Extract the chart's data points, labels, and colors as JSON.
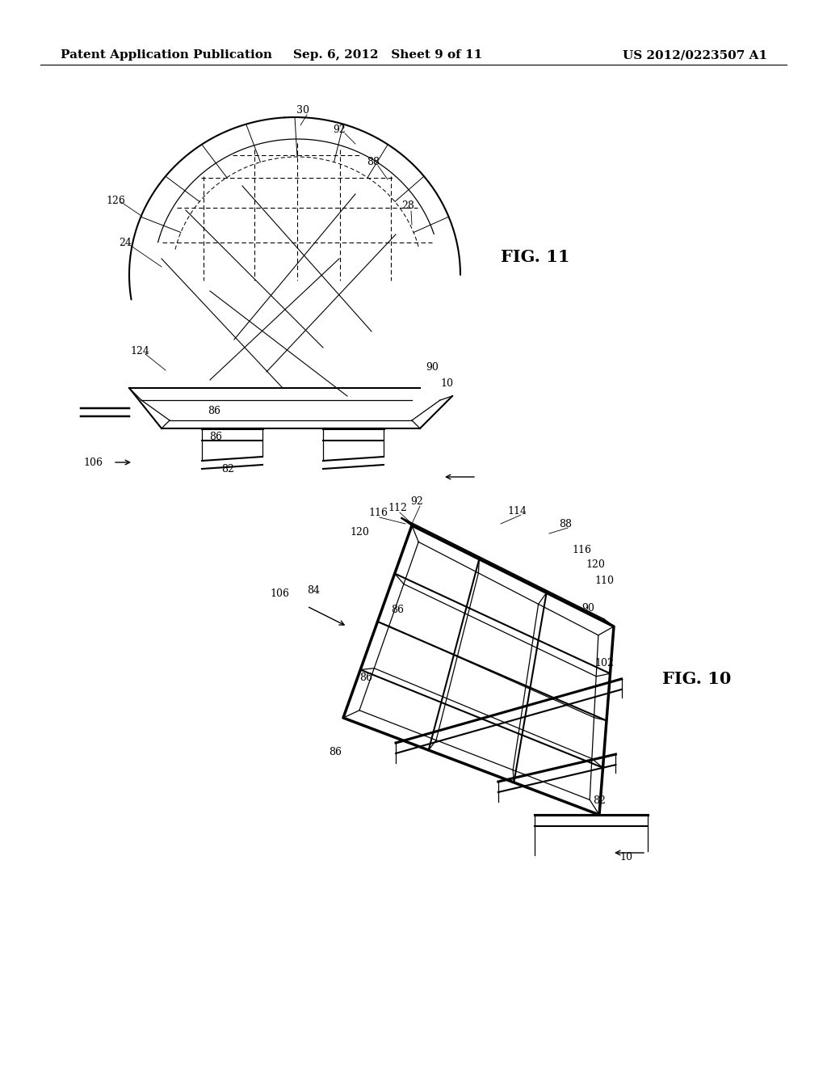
{
  "background_color": "#ffffff",
  "header_left": "Patent Application Publication",
  "header_center": "Sep. 6, 2012   Sheet 9 of 11",
  "header_right": "US 2012/0223507 A1",
  "header_fontsize": 11,
  "fig11_label": "FIG. 11",
  "fig10_label": "FIG. 10",
  "label_fontsize": 15
}
